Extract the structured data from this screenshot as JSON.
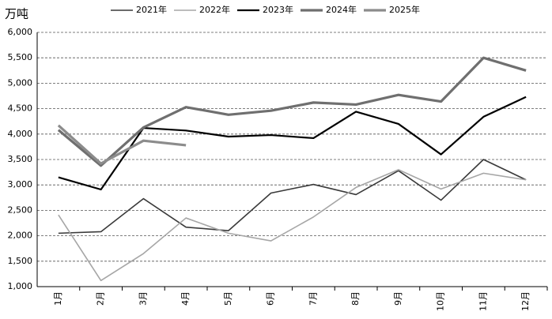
{
  "chart_data": {
    "type": "line",
    "unit": "万吨",
    "categories": [
      "1月",
      "2月",
      "3月",
      "4月",
      "5月",
      "6月",
      "7月",
      "8月",
      "9月",
      "10月",
      "11月",
      "12月"
    ],
    "series": [
      {
        "name": "2021年",
        "color": "#3a3a3a",
        "width": 1.6,
        "values": [
          2050,
          2080,
          2730,
          2170,
          2100,
          2840,
          3010,
          2810,
          3280,
          2700,
          3500,
          3100
        ]
      },
      {
        "name": "2022年",
        "color": "#a6a6a6",
        "width": 1.6,
        "values": [
          2410,
          1120,
          1650,
          2350,
          2050,
          1900,
          2370,
          2950,
          3300,
          2920,
          3230,
          3100
        ]
      },
      {
        "name": "2023年",
        "color": "#000000",
        "width": 2.2,
        "values": [
          3150,
          2910,
          4120,
          4070,
          3950,
          3980,
          3920,
          4440,
          4200,
          3600,
          4340,
          4730
        ]
      },
      {
        "name": "2024年",
        "color": "#6f6f6f",
        "width": 3.2,
        "values": [
          4080,
          3380,
          4130,
          4530,
          4380,
          4460,
          4620,
          4580,
          4770,
          4640,
          5500,
          5250
        ]
      },
      {
        "name": "2025年",
        "color": "#8c8c8c",
        "width": 3.2,
        "values": [
          4170,
          3420,
          3870,
          3780,
          null,
          null,
          null,
          null,
          null,
          null,
          null,
          null
        ]
      }
    ],
    "ylim": [
      1000,
      6000
    ],
    "yticks": [
      {
        "value": 1000,
        "label": "1,000"
      },
      {
        "value": 1500,
        "label": "1,500"
      },
      {
        "value": 2000,
        "label": "2,000"
      },
      {
        "value": 2500,
        "label": "2,500"
      },
      {
        "value": 3000,
        "label": "3,000"
      },
      {
        "value": 3500,
        "label": "3,500"
      },
      {
        "value": 4000,
        "label": "4,000"
      },
      {
        "value": 4500,
        "label": "4,500"
      },
      {
        "value": 5000,
        "label": "5,000"
      },
      {
        "value": 5500,
        "label": "5,500"
      },
      {
        "value": 6000,
        "label": "6,000"
      }
    ],
    "grid": true
  }
}
